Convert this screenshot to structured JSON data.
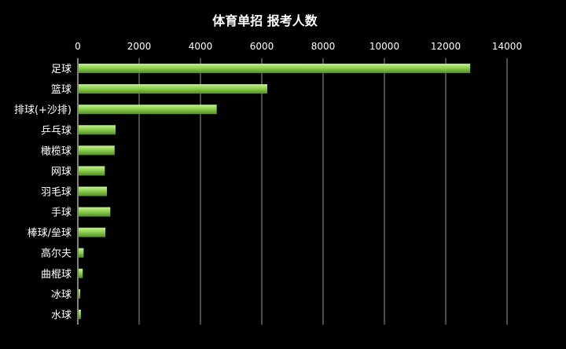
{
  "chart_data": {
    "type": "bar",
    "orientation": "horizontal",
    "title": "体育单招 报考人数",
    "xlabel": "",
    "ylabel": "",
    "xlim": [
      0,
      14000
    ],
    "ticks": [
      "0",
      "2000",
      "4000",
      "6000",
      "8000",
      "10000",
      "12000",
      "14000"
    ],
    "tick_values": [
      0,
      2000,
      4000,
      6000,
      8000,
      10000,
      12000,
      14000
    ],
    "axis_position": "top",
    "grid": true,
    "legend": "none",
    "categories": [
      "足球",
      "篮球",
      "排球(+沙排)",
      "乒乓球",
      "橄榄球",
      "网球",
      "羽毛球",
      "手球",
      "棒球/垒球",
      "高尔夫",
      "曲棍球",
      "冰球",
      "水球"
    ],
    "values": [
      12800,
      6180,
      4530,
      1230,
      1200,
      880,
      950,
      1060,
      900,
      190,
      160,
      80,
      100
    ],
    "bar_color": "#7fc443",
    "background": "#000000"
  }
}
